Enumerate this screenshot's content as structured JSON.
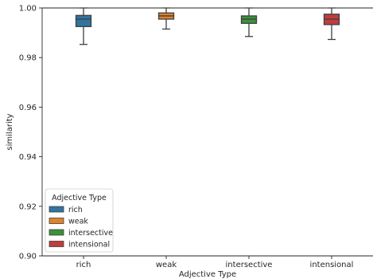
{
  "chart_data": {
    "type": "box",
    "xlabel": "Adjective Type",
    "ylabel": "similarity",
    "ylim": [
      0.9,
      1.0
    ],
    "yticks": [
      0.9,
      0.92,
      0.94,
      0.96,
      0.98,
      1.0
    ],
    "ytick_labels": [
      "0.90",
      "0.92",
      "0.94",
      "0.96",
      "0.98",
      "1.00"
    ],
    "categories": [
      "rich",
      "weak",
      "intersective",
      "intensional"
    ],
    "series": [
      {
        "name": "rich",
        "color": "#3274a1",
        "whisker_low": 0.9853,
        "q1": 0.9925,
        "median": 0.9955,
        "q3": 0.997,
        "whisker_high": 1.0
      },
      {
        "name": "weak",
        "color": "#e1812c",
        "whisker_low": 0.9915,
        "q1": 0.9955,
        "median": 0.9968,
        "q3": 0.998,
        "whisker_high": 1.0
      },
      {
        "name": "intersective",
        "color": "#3a923a",
        "whisker_low": 0.9885,
        "q1": 0.9938,
        "median": 0.9955,
        "q3": 0.9968,
        "whisker_high": 1.0
      },
      {
        "name": "intensional",
        "color": "#c03d3e",
        "whisker_low": 0.9873,
        "q1": 0.9933,
        "median": 0.9955,
        "q3": 0.9975,
        "whisker_high": 1.0
      }
    ],
    "legend": {
      "title": "Adjective Type",
      "placement": "lower-left",
      "entries": [
        "rich",
        "weak",
        "intersective",
        "intensional"
      ]
    },
    "grid": false
  }
}
